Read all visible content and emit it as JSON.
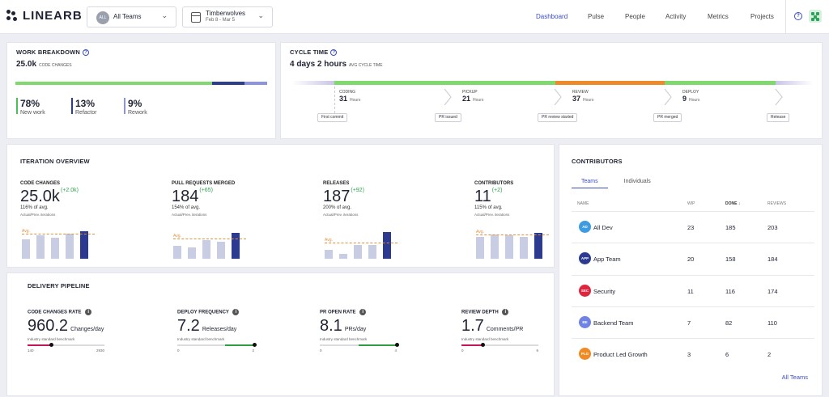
{
  "brand": {
    "logo_text": "LINEARB"
  },
  "filters": {
    "team": {
      "avatar": "ALL",
      "label": "All Teams"
    },
    "range": {
      "label": "Timberwolves",
      "dates": "Feb 8 - Mar 5"
    }
  },
  "nav": [
    "Dashboard",
    "Pulse",
    "People",
    "Activity",
    "Metrics",
    "Projects"
  ],
  "help_icon": "?",
  "work_breakdown": {
    "title": "WORK BREAKDOWN",
    "help": "?",
    "total": "25.0k",
    "total_label": "CODE CHANGES",
    "segments": [
      {
        "name": "New work",
        "pct": 78,
        "color": "#7fd96e"
      },
      {
        "name": "Refactor",
        "pct": 13,
        "color": "#2f3d8f"
      },
      {
        "name": "Rework",
        "pct": 9,
        "color": "#8a94e0"
      }
    ],
    "stats": [
      {
        "value": "78%",
        "label": "New work",
        "color": "#4bbf5a"
      },
      {
        "value": "13%",
        "label": "Refactor",
        "color": "#2f3d8f"
      },
      {
        "value": "9%",
        "label": "Rework",
        "color": "#8a94e0"
      }
    ]
  },
  "cycle_time": {
    "title": "CYCLE TIME",
    "help": "?",
    "total": "4 days 2 hours",
    "total_label": "AVG CYCLE TIME",
    "stages": [
      {
        "name": "CODING",
        "value": "31",
        "unit": "Hours",
        "color": "#7fd96e"
      },
      {
        "name": "PICKUP",
        "value": "21",
        "unit": "Hours",
        "color": "#7fd96e"
      },
      {
        "name": "REVIEW",
        "value": "37",
        "unit": "Hours",
        "color": "#ef8a2a"
      },
      {
        "name": "DEPLOY",
        "value": "9",
        "unit": "Hours",
        "color": "#7fd96e"
      }
    ],
    "events": [
      "First commit",
      "PR issued",
      "PR review started",
      "PR merged",
      "Release"
    ]
  },
  "iteration": {
    "title": "ITERATION OVERVIEW",
    "avg_label": "Avg.",
    "metrics": [
      {
        "label": "CODE CHANGES",
        "value": "25.0k",
        "delta": "(+2.0k)",
        "sub": "116% of avg.",
        "sub2": "Actual/Prev. iterations",
        "bars": [
          0.62,
          0.76,
          0.68,
          0.82,
          0.9
        ],
        "avg": 0.78
      },
      {
        "label": "PULL REQUESTS MERGED",
        "value": "184",
        "delta": "(+65)",
        "sub": "154% of avg.",
        "sub2": "Actual/Prev. iterations",
        "bars": [
          0.42,
          0.38,
          0.6,
          0.55,
          0.85
        ],
        "avg": 0.62
      },
      {
        "label": "RELEASES",
        "value": "187",
        "delta": "(+92)",
        "sub": "200% of avg.",
        "sub2": "Actual/Prev. iterations",
        "bars": [
          0.3,
          0.15,
          0.45,
          0.45,
          0.88
        ],
        "avg": 0.5
      },
      {
        "label": "CONTRIBUTORS",
        "value": "11",
        "delta": "(+2)",
        "sub": "115% of avg.",
        "sub2": "Actual/Prev. iterations",
        "bars": [
          0.72,
          0.8,
          0.76,
          0.7,
          0.85
        ],
        "avg": 0.76
      }
    ]
  },
  "delivery": {
    "title": "DELIVERY PIPELINE",
    "bench_label": "Industry standard benchmark",
    "metrics": [
      {
        "label": "CODE CHANGES RATE",
        "value": "960.2",
        "unit": "Changes/day",
        "min": "140",
        "max": "2930",
        "fill_color": "#c2185b",
        "fill": 0.31,
        "fill_from": 0
      },
      {
        "label": "DEPLOY FREQUENCY",
        "value": "7.2",
        "unit": "Releases/day",
        "min": "0",
        "max": "2",
        "fill_color": "#2e9e3e",
        "fill": 1.0,
        "fill_from": 0.62
      },
      {
        "label": "PR OPEN RATE",
        "value": "8.1",
        "unit": "PRs/day",
        "min": "0",
        "max": "4",
        "fill_color": "#2e9e3e",
        "fill": 1.0,
        "fill_from": 0.5
      },
      {
        "label": "REVIEW DEPTH",
        "value": "1.7",
        "unit": "Comments/PR",
        "min": "0",
        "max": "6",
        "fill_color": "#c2185b",
        "fill": 0.27,
        "fill_from": 0
      }
    ]
  },
  "contributors": {
    "title": "CONTRIBUTORS",
    "tabs": [
      "Teams",
      "Individuals"
    ],
    "columns": [
      "NAME",
      "WIP",
      "DONE",
      "REVIEWS"
    ],
    "sort_icon": "↓",
    "rows": [
      {
        "avatar": "AD",
        "name": "All Dev",
        "wip": "23",
        "done": "185",
        "reviews": "203",
        "color": "#3f9be0"
      },
      {
        "avatar": "APP",
        "name": "App Team",
        "wip": "20",
        "done": "158",
        "reviews": "184",
        "color": "#2c3a8f"
      },
      {
        "avatar": "SEC",
        "name": "Security",
        "wip": "11",
        "done": "116",
        "reviews": "174",
        "color": "#e0263e"
      },
      {
        "avatar": "BE",
        "name": "Backend Team",
        "wip": "7",
        "done": "82",
        "reviews": "110",
        "color": "#6f82e6"
      },
      {
        "avatar": "PLG",
        "name": "Product Led Growth",
        "wip": "3",
        "done": "6",
        "reviews": "2",
        "color": "#f08a22"
      }
    ],
    "link": "All Teams"
  }
}
